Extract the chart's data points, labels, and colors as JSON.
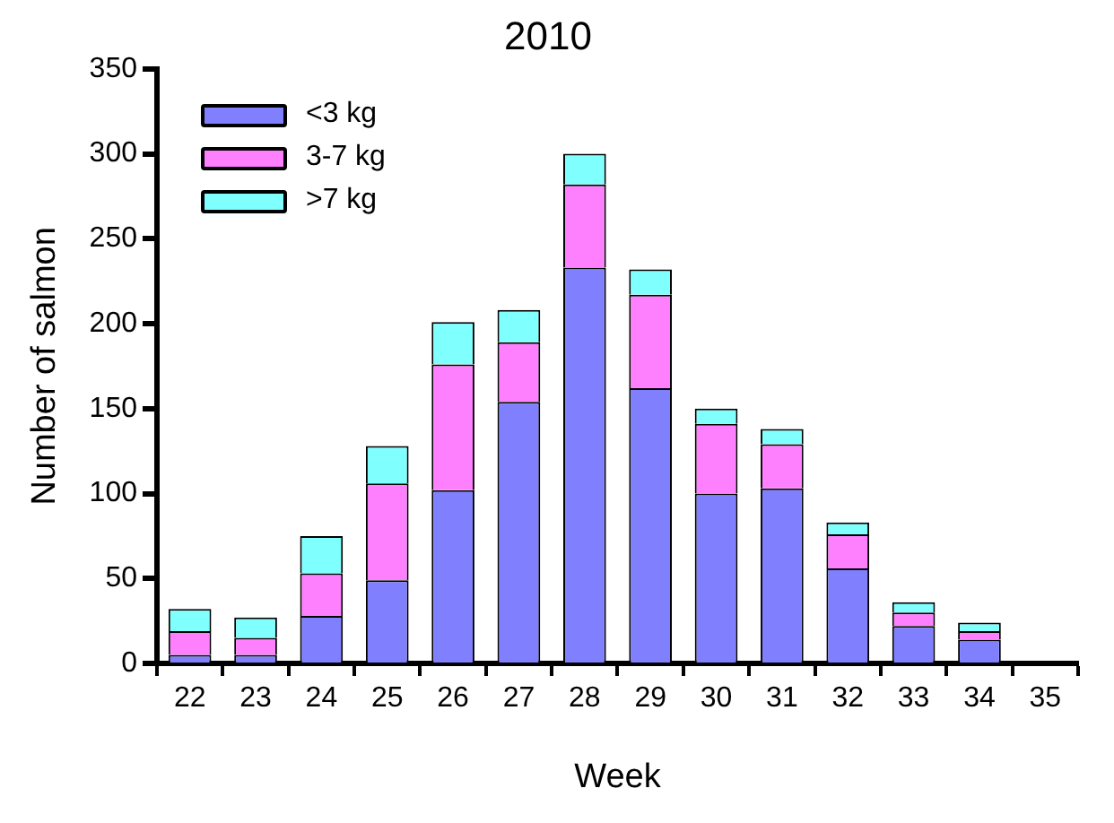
{
  "chart_data": {
    "type": "bar",
    "title": "2010",
    "xlabel": "Week",
    "ylabel": "Number of salmon",
    "categories": [
      "22",
      "23",
      "24",
      "25",
      "26",
      "27",
      "28",
      "29",
      "30",
      "31",
      "32",
      "33",
      "34",
      "35"
    ],
    "series": [
      {
        "name": "<3 kg",
        "color": "#8080ff",
        "values": [
          5,
          5,
          28,
          49,
          102,
          154,
          233,
          162,
          100,
          103,
          56,
          22,
          14,
          null
        ]
      },
      {
        "name": "3-7 kg",
        "color": "#ff80ff",
        "values": [
          14,
          10,
          25,
          57,
          74,
          35,
          49,
          55,
          41,
          26,
          20,
          8,
          5,
          null
        ]
      },
      {
        "name": ">7 kg",
        "color": "#80ffff",
        "values": [
          13,
          12,
          22,
          22,
          25,
          19,
          18,
          15,
          9,
          9,
          7,
          6,
          5,
          null
        ]
      }
    ],
    "stacked": true,
    "ylim": [
      0,
      350
    ],
    "yticks": [
      0,
      50,
      100,
      150,
      200,
      250,
      300,
      350
    ],
    "grid": false,
    "legend": "top left"
  }
}
